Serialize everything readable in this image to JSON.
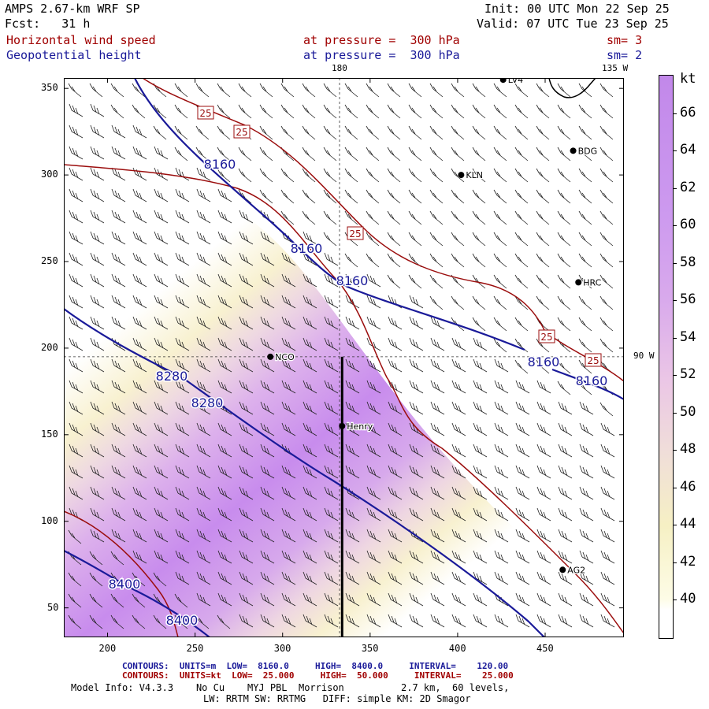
{
  "header": {
    "line1_left": "AMPS 2.67-km WRF SP",
    "line2_left": "Fcst:   31 h",
    "line1_right": "Init: 00 UTC Mon 22 Sep 25",
    "line2_right": "Valid: 07 UTC Tue 23 Sep 25",
    "field1_name": "Horizontal wind speed",
    "field1_level": "at pressure =  300 hPa",
    "field1_sm": "sm= 3",
    "field2_name": "Geopotential height",
    "field2_level": "at pressure =  300 hPa",
    "field2_sm": "sm= 2"
  },
  "map": {
    "meridian_labels": [
      "180",
      "135 W",
      "90 W"
    ],
    "stations": [
      {
        "name": "LV4",
        "x": 426,
        "y": 355
      },
      {
        "name": "BDG",
        "x": 466,
        "y": 314
      },
      {
        "name": "KLN",
        "x": 402,
        "y": 300
      },
      {
        "name": "HRC",
        "x": 469,
        "y": 238
      },
      {
        "name": "NCO",
        "x": 293,
        "y": 195
      },
      {
        "name": "Henry",
        "x": 334,
        "y": 155
      },
      {
        "name": "AG2",
        "x": 460,
        "y": 72
      },
      {
        "name": "",
        "x": 497,
        "y": 141
      }
    ],
    "x_ticks": [
      200,
      250,
      300,
      350,
      400,
      450
    ],
    "y_ticks": [
      50,
      100,
      150,
      200,
      250,
      300,
      350
    ],
    "x_range": [
      175,
      495
    ],
    "y_range": [
      33,
      356
    ],
    "height_contour_labels": [
      "8160",
      "8160",
      "8160",
      "8160",
      "8160",
      "8280",
      "8280",
      "8400",
      "8400"
    ],
    "speed_contour_labels": [
      "25",
      "25",
      "25",
      "25",
      "25"
    ],
    "cross_section": {
      "x": 334,
      "y0": 33,
      "y1": 195
    }
  },
  "colorbar": {
    "unit": "kt",
    "ticks": [
      "40",
      "42",
      "44",
      "46",
      "48",
      "50",
      "52",
      "54",
      "56",
      "58",
      "60",
      "62",
      "64",
      "66"
    ],
    "colors": {
      "low": "#ffffff",
      "c40": "#fdfce6",
      "c44": "#f6f0c4",
      "c48": "#f0ded9",
      "c52": "#ebc6e6",
      "c56": "#d9aaec",
      "c60": "#cd9aef",
      "c66": "#c288ea"
    }
  },
  "footer": {
    "contours1": "CONTOURS:  UNITS=m  LOW=  8160.0     HIGH=  8400.0     INTERVAL=    120.00",
    "contours2": "CONTOURS:  UNITS=kt  LOW=  25.000     HIGH=  50.000     INTERVAL=    25.000",
    "model_info": "Model Info: V4.3.3    No Cu    MYJ PBL  Morrison          2.7 km,  60 levels,",
    "model_info2": "LW: RRTM SW: RRTMG   DIFF: simple KM: 2D Smagor"
  }
}
